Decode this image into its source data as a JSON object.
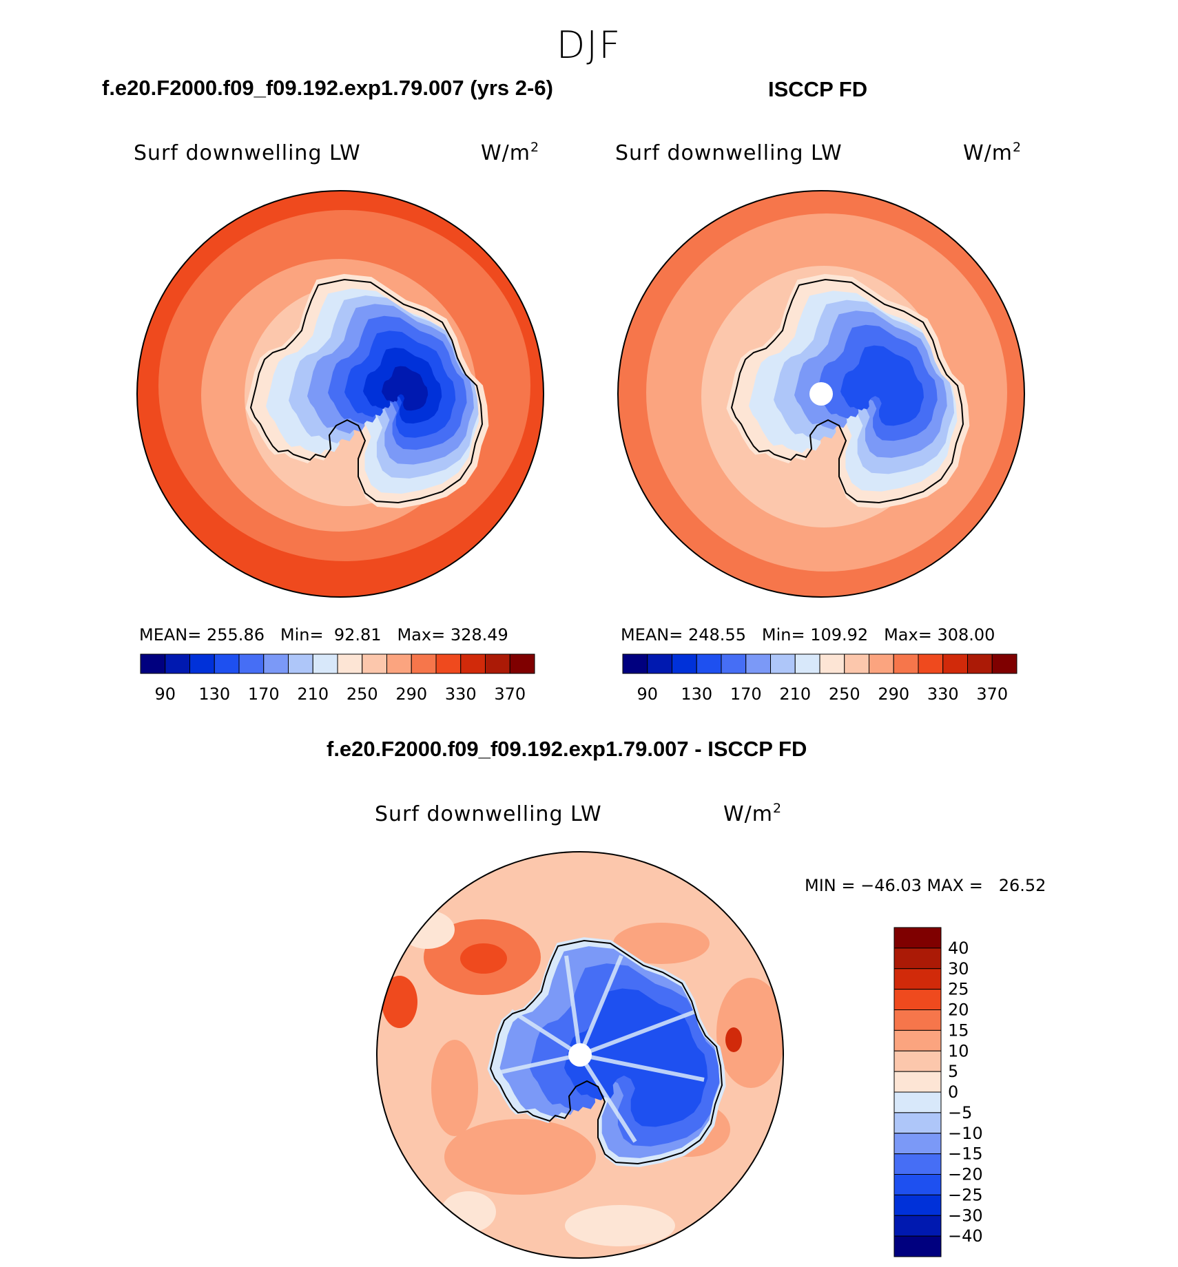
{
  "season": "DJF",
  "panels": [
    {
      "case_title": "f.e20.F2000.f09_f09.192.exp1.79.007 (yrs 2-6)",
      "variable": "Surf downwelling LW",
      "units": "W/m",
      "units_sup": "2",
      "mean_label": "MEAN=",
      "mean": "255.86",
      "min_label": "Min=",
      "min": "92.81",
      "max_label": "Max=",
      "max": "328.49"
    },
    {
      "case_title": "ISCCP FD",
      "variable": "Surf downwelling LW",
      "units": "W/m",
      "units_sup": "2",
      "mean_label": "MEAN=",
      "mean": "248.55",
      "min_label": "Min=",
      "min": "109.92",
      "max_label": "Max=",
      "max": "308.00"
    }
  ],
  "diff_panel": {
    "case_title": "f.e20.F2000.f09_f09.192.exp1.79.007 - ISCCP FD",
    "variable": "Surf downwelling LW",
    "units": "W/m",
    "units_sup": "2",
    "minmax_text": "MIN = −46.03 MAX =   26.52"
  },
  "chart_data": [
    {
      "type": "heatmap",
      "projection": "south-polar-stereographic",
      "title": "Surf downwelling LW",
      "units": "W/m2",
      "mean": 255.86,
      "min": 92.81,
      "max": 328.49,
      "colorbar": {
        "orientation": "horizontal",
        "levels": [
          90,
          110,
          130,
          150,
          170,
          190,
          210,
          230,
          250,
          270,
          290,
          310,
          330,
          350,
          370
        ],
        "tick_labels": [
          "90",
          "130",
          "170",
          "210",
          "250",
          "290",
          "330",
          "370"
        ],
        "colors": [
          "#00007f",
          "#0019b0",
          "#0031d9",
          "#1e50f0",
          "#466ef5",
          "#7b99f7",
          "#aec6f9",
          "#d8e8fa",
          "#fde5d5",
          "#fcc7ac",
          "#fba47f",
          "#f6764b",
          "#ef4a1e",
          "#d12a0a",
          "#ab1a06",
          "#7f0000"
        ]
      }
    },
    {
      "type": "heatmap",
      "projection": "south-polar-stereographic",
      "title": "Surf downwelling LW",
      "units": "W/m2",
      "mean": 248.55,
      "min": 109.92,
      "max": 308.0,
      "colorbar": {
        "orientation": "horizontal",
        "levels": [
          90,
          110,
          130,
          150,
          170,
          190,
          210,
          230,
          250,
          270,
          290,
          310,
          330,
          350,
          370
        ],
        "tick_labels": [
          "90",
          "130",
          "170",
          "210",
          "250",
          "290",
          "330",
          "370"
        ],
        "colors": [
          "#00007f",
          "#0019b0",
          "#0031d9",
          "#1e50f0",
          "#466ef5",
          "#7b99f7",
          "#aec6f9",
          "#d8e8fa",
          "#fde5d5",
          "#fcc7ac",
          "#fba47f",
          "#f6764b",
          "#ef4a1e",
          "#d12a0a",
          "#ab1a06",
          "#7f0000"
        ]
      }
    },
    {
      "type": "heatmap",
      "projection": "south-polar-stereographic",
      "title": "Surf downwelling LW",
      "units": "W/m2",
      "min": -46.03,
      "max": 26.52,
      "colorbar": {
        "orientation": "vertical",
        "levels": [
          -40,
          -30,
          -25,
          -20,
          -15,
          -10,
          -5,
          0,
          5,
          10,
          15,
          20,
          25,
          30,
          40
        ],
        "tick_labels": [
          "40",
          "30",
          "25",
          "20",
          "15",
          "10",
          "5",
          "0",
          "−5",
          "−10",
          "−15",
          "−20",
          "−25",
          "−30",
          "−40"
        ],
        "colors": [
          "#00007f",
          "#0019b0",
          "#0031d9",
          "#1e50f0",
          "#466ef5",
          "#7b99f7",
          "#aec6f9",
          "#d8e8fa",
          "#fde5d5",
          "#fcc7ac",
          "#fba47f",
          "#f6764b",
          "#ef4a1e",
          "#d12a0a",
          "#ab1a06",
          "#7f0000"
        ]
      }
    }
  ]
}
